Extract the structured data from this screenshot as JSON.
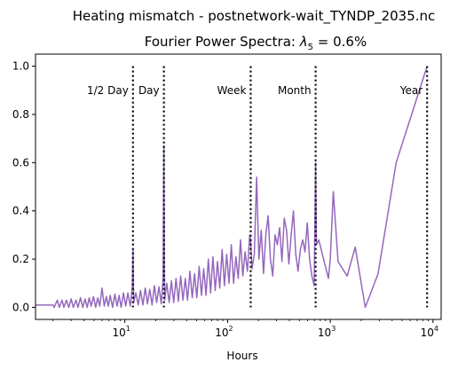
{
  "chart_data": {
    "type": "line",
    "suptitle": "Heating mismatch - postnetwork-wait_TYNDP_2035.nc",
    "title_prefix": "Fourier Power Spectra: ",
    "title_lambda": "λ",
    "title_subscript": "5",
    "title_suffix": " = 0.6%",
    "xlabel": "Hours",
    "ylabel": "",
    "xscale": "log",
    "xlim": [
      1.35,
      12000
    ],
    "ylim": [
      -0.05,
      1.05
    ],
    "x_ticks": [
      {
        "value": 10,
        "base": "10",
        "exp": "1"
      },
      {
        "value": 100,
        "base": "10",
        "exp": "2"
      },
      {
        "value": 1000,
        "base": "10",
        "exp": "3"
      },
      {
        "value": 10000,
        "base": "10",
        "exp": "4"
      }
    ],
    "y_ticks": [
      {
        "value": 0.0,
        "label": "0.0"
      },
      {
        "value": 0.2,
        "label": "0.2"
      },
      {
        "value": 0.4,
        "label": "0.4"
      },
      {
        "value": 0.6,
        "label": "0.6"
      },
      {
        "value": 0.8,
        "label": "0.8"
      },
      {
        "value": 1.0,
        "label": "1.0"
      }
    ],
    "grid": false,
    "series_color": "#9467bd",
    "marker_color": "#000000",
    "markers": [
      {
        "label": "1/2 Day",
        "x": 12,
        "label_side": "left"
      },
      {
        "label": "Day",
        "x": 24,
        "label_side": "left"
      },
      {
        "label": "Week",
        "x": 168,
        "label_side": "left"
      },
      {
        "label": "Month",
        "x": 720,
        "label_side": "left"
      },
      {
        "label": "Year",
        "x": 8760,
        "label_side": "left"
      }
    ],
    "marker_label_y": 0.9,
    "series": [
      {
        "points": [
          [
            1.0,
            0.01
          ],
          [
            2.0,
            0.01
          ],
          [
            2.05,
            0.0
          ],
          [
            2.2,
            0.03
          ],
          [
            2.3,
            0.0
          ],
          [
            2.45,
            0.03
          ],
          [
            2.55,
            0.0
          ],
          [
            2.7,
            0.03
          ],
          [
            2.85,
            0.0
          ],
          [
            3.0,
            0.035
          ],
          [
            3.15,
            0.0
          ],
          [
            3.35,
            0.03
          ],
          [
            3.5,
            0.0
          ],
          [
            3.7,
            0.04
          ],
          [
            3.9,
            0.0
          ],
          [
            4.1,
            0.035
          ],
          [
            4.3,
            0.0
          ],
          [
            4.5,
            0.04
          ],
          [
            4.7,
            0.005
          ],
          [
            4.95,
            0.045
          ],
          [
            5.2,
            0.0
          ],
          [
            5.45,
            0.04
          ],
          [
            5.7,
            0.005
          ],
          [
            6.0,
            0.08
          ],
          [
            6.3,
            0.005
          ],
          [
            6.6,
            0.045
          ],
          [
            6.9,
            0.005
          ],
          [
            7.2,
            0.05
          ],
          [
            7.6,
            0.0
          ],
          [
            8.0,
            0.055
          ],
          [
            8.4,
            0.005
          ],
          [
            8.8,
            0.05
          ],
          [
            9.2,
            0.0
          ],
          [
            9.7,
            0.06
          ],
          [
            10.2,
            0.005
          ],
          [
            10.7,
            0.06
          ],
          [
            11.3,
            0.005
          ],
          [
            11.8,
            0.08
          ],
          [
            12.0,
            0.24
          ],
          [
            12.2,
            0.02
          ],
          [
            12.8,
            0.06
          ],
          [
            13.5,
            0.01
          ],
          [
            14.2,
            0.07
          ],
          [
            15.0,
            0.01
          ],
          [
            15.8,
            0.08
          ],
          [
            16.6,
            0.015
          ],
          [
            17.5,
            0.075
          ],
          [
            18.4,
            0.01
          ],
          [
            19.4,
            0.09
          ],
          [
            20.4,
            0.02
          ],
          [
            21.5,
            0.085
          ],
          [
            22.6,
            0.015
          ],
          [
            23.6,
            0.12
          ],
          [
            24.0,
            0.67
          ],
          [
            24.4,
            0.03
          ],
          [
            25.6,
            0.1
          ],
          [
            27.0,
            0.02
          ],
          [
            28.4,
            0.11
          ],
          [
            29.9,
            0.02
          ],
          [
            31.5,
            0.12
          ],
          [
            33.2,
            0.025
          ],
          [
            35.0,
            0.13
          ],
          [
            36.8,
            0.03
          ],
          [
            38.8,
            0.12
          ],
          [
            40.8,
            0.03
          ],
          [
            43.0,
            0.15
          ],
          [
            45.3,
            0.04
          ],
          [
            47.7,
            0.14
          ],
          [
            50.2,
            0.04
          ],
          [
            52.9,
            0.17
          ],
          [
            55.7,
            0.05
          ],
          [
            58.6,
            0.16
          ],
          [
            61.7,
            0.05
          ],
          [
            65.0,
            0.2
          ],
          [
            68.4,
            0.06
          ],
          [
            72.0,
            0.21
          ],
          [
            75.8,
            0.07
          ],
          [
            79.8,
            0.19
          ],
          [
            84.0,
            0.08
          ],
          [
            88.5,
            0.24
          ],
          [
            93.2,
            0.09
          ],
          [
            98.1,
            0.22
          ],
          [
            103.3,
            0.1
          ],
          [
            108.8,
            0.26
          ],
          [
            114.5,
            0.1
          ],
          [
            120.6,
            0.21
          ],
          [
            127.0,
            0.12
          ],
          [
            133.7,
            0.28
          ],
          [
            140.8,
            0.13
          ],
          [
            148.2,
            0.23
          ],
          [
            156.1,
            0.15
          ],
          [
            164.3,
            0.3
          ],
          [
            168.0,
            0.27
          ],
          [
            173.0,
            0.16
          ],
          [
            182.2,
            0.22
          ],
          [
            191.8,
            0.54
          ],
          [
            202.0,
            0.2
          ],
          [
            212.7,
            0.32
          ],
          [
            224.0,
            0.14
          ],
          [
            235.8,
            0.3
          ],
          [
            248.3,
            0.38
          ],
          [
            261.4,
            0.2
          ],
          [
            275.3,
            0.13
          ],
          [
            289.9,
            0.3
          ],
          [
            305.2,
            0.26
          ],
          [
            321.4,
            0.33
          ],
          [
            338.4,
            0.19
          ],
          [
            356.3,
            0.37
          ],
          [
            375.2,
            0.32
          ],
          [
            395.1,
            0.18
          ],
          [
            416.0,
            0.3
          ],
          [
            438.0,
            0.4
          ],
          [
            461.2,
            0.22
          ],
          [
            485.7,
            0.15
          ],
          [
            511.4,
            0.24
          ],
          [
            538.5,
            0.28
          ],
          [
            567.0,
            0.23
          ],
          [
            597.1,
            0.35
          ],
          [
            628.7,
            0.2
          ],
          [
            662.0,
            0.13
          ],
          [
            697.1,
            0.09
          ],
          [
            720.0,
            0.6
          ],
          [
            734.0,
            0.26
          ],
          [
            772.9,
            0.28
          ],
          [
            860.0,
            0.2
          ],
          [
            960.0,
            0.12
          ],
          [
            1000.0,
            0.2
          ],
          [
            1070.0,
            0.48
          ],
          [
            1190.0,
            0.19
          ],
          [
            1460.0,
            0.13
          ],
          [
            1750.0,
            0.25
          ],
          [
            2190.0,
            0.0
          ],
          [
            2920.0,
            0.14
          ],
          [
            4380.0,
            0.6
          ],
          [
            8760.0,
            1.0
          ]
        ]
      }
    ]
  }
}
